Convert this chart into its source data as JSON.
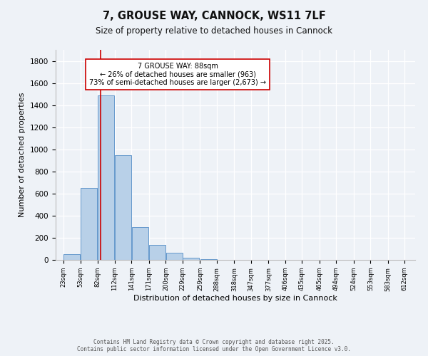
{
  "title": "7, GROUSE WAY, CANNOCK, WS11 7LF",
  "subtitle": "Size of property relative to detached houses in Cannock",
  "xlabel": "Distribution of detached houses by size in Cannock",
  "ylabel": "Number of detached properties",
  "footnote1": "Contains HM Land Registry data © Crown copyright and database right 2025.",
  "footnote2": "Contains public sector information licensed under the Open Government Licence v3.0.",
  "bar_left_edges": [
    23,
    53,
    82,
    112,
    141,
    171,
    200,
    229,
    259,
    288,
    318,
    347,
    377,
    406,
    435,
    465,
    494,
    524,
    553,
    583
  ],
  "bar_widths": [
    29,
    29,
    29,
    29,
    29,
    29,
    29,
    29,
    29,
    29,
    29,
    29,
    29,
    29,
    29,
    29,
    29,
    29,
    29,
    29
  ],
  "bar_heights": [
    50,
    650,
    1490,
    950,
    295,
    135,
    65,
    20,
    5,
    2,
    1,
    1,
    0,
    0,
    0,
    0,
    0,
    0,
    0,
    0
  ],
  "bar_color": "#b8d0e8",
  "bar_edgecolor": "#6699cc",
  "tick_labels": [
    "23sqm",
    "53sqm",
    "82sqm",
    "112sqm",
    "141sqm",
    "171sqm",
    "200sqm",
    "229sqm",
    "259sqm",
    "288sqm",
    "318sqm",
    "347sqm",
    "377sqm",
    "406sqm",
    "435sqm",
    "465sqm",
    "494sqm",
    "524sqm",
    "553sqm",
    "583sqm",
    "612sqm"
  ],
  "tick_positions": [
    23,
    53,
    82,
    112,
    141,
    171,
    200,
    229,
    259,
    288,
    318,
    347,
    377,
    406,
    435,
    465,
    494,
    524,
    553,
    583,
    612
  ],
  "ylim": [
    0,
    1900
  ],
  "xlim": [
    10,
    630
  ],
  "property_size": 88,
  "vline_color": "#cc0000",
  "annotation_title": "7 GROUSE WAY: 88sqm",
  "annotation_line1": "← 26% of detached houses are smaller (963)",
  "annotation_line2": "73% of semi-detached houses are larger (2,673) →",
  "annotation_box_facecolor": "#ffffff",
  "annotation_box_edgecolor": "#cc0000",
  "background_color": "#eef2f7",
  "grid_color": "#ffffff",
  "yticks": [
    0,
    200,
    400,
    600,
    800,
    1000,
    1200,
    1400,
    1600,
    1800
  ]
}
